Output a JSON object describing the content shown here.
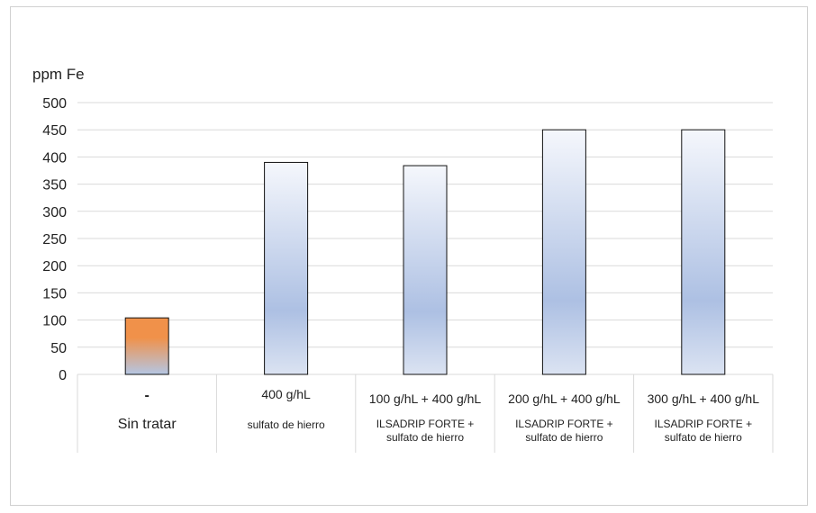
{
  "chart_data": {
    "type": "bar",
    "ylabel": "ppm Fe",
    "ylim": [
      0,
      500
    ],
    "yticks": [
      0,
      50,
      100,
      150,
      200,
      250,
      300,
      350,
      400,
      450,
      500
    ],
    "grid": true,
    "categories": [
      {
        "line1": "-",
        "line2": "Sin tratar",
        "line3": ""
      },
      {
        "line1": "400 g/hL",
        "line2": "sulfato de hierro",
        "line3": ""
      },
      {
        "line1": "100 g/hL + 400 g/hL",
        "line2": "ILSADRIP FORTE +",
        "line3": "sulfato de hierro"
      },
      {
        "line1": "200 g/hL + 400 g/hL",
        "line2": "ILSADRIP FORTE +",
        "line3": "sulfato de hierro"
      },
      {
        "line1": "300 g/hL + 400 g/hL",
        "line2": "ILSADRIP FORTE +",
        "line3": "sulfato de hierro"
      }
    ],
    "values": [
      104,
      390,
      384,
      450,
      450
    ],
    "colors": {
      "untreated_top": "#f0914a",
      "untreated_bottom": "#b4c6e4",
      "treated_top": "#f5f7fc",
      "treated_mid": "#adc0e3",
      "treated_bottom": "#dbe3f2",
      "grid": "#d9d9d9",
      "bar_border": "#111111"
    }
  }
}
